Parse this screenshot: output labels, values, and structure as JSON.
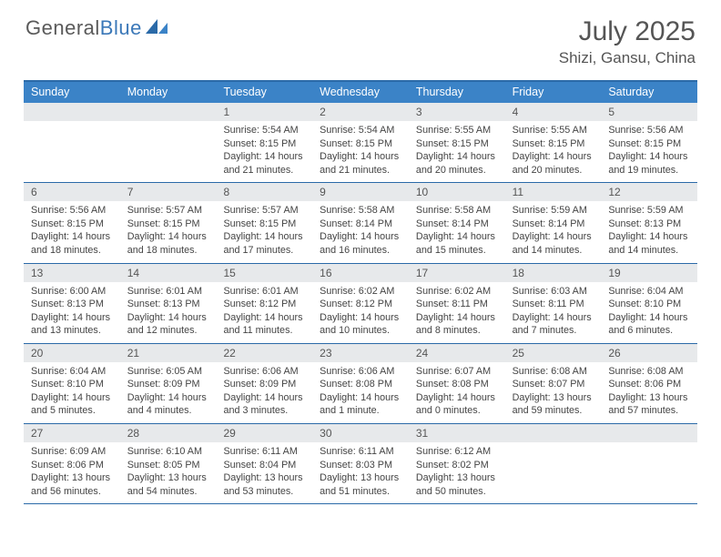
{
  "logo": {
    "text1": "General",
    "text2": "Blue"
  },
  "title": "July 2025",
  "location": "Shizi, Gansu, China",
  "colors": {
    "header_bg": "#3b83c7",
    "border": "#2b6aa8",
    "daynum_bg": "#e7e9eb",
    "text": "#444444",
    "title": "#555555"
  },
  "dow": [
    "Sunday",
    "Monday",
    "Tuesday",
    "Wednesday",
    "Thursday",
    "Friday",
    "Saturday"
  ],
  "weeks": [
    [
      {
        "n": "",
        "sr": "",
        "ss": "",
        "dl": ""
      },
      {
        "n": "",
        "sr": "",
        "ss": "",
        "dl": ""
      },
      {
        "n": "1",
        "sr": "Sunrise: 5:54 AM",
        "ss": "Sunset: 8:15 PM",
        "dl": "Daylight: 14 hours and 21 minutes."
      },
      {
        "n": "2",
        "sr": "Sunrise: 5:54 AM",
        "ss": "Sunset: 8:15 PM",
        "dl": "Daylight: 14 hours and 21 minutes."
      },
      {
        "n": "3",
        "sr": "Sunrise: 5:55 AM",
        "ss": "Sunset: 8:15 PM",
        "dl": "Daylight: 14 hours and 20 minutes."
      },
      {
        "n": "4",
        "sr": "Sunrise: 5:55 AM",
        "ss": "Sunset: 8:15 PM",
        "dl": "Daylight: 14 hours and 20 minutes."
      },
      {
        "n": "5",
        "sr": "Sunrise: 5:56 AM",
        "ss": "Sunset: 8:15 PM",
        "dl": "Daylight: 14 hours and 19 minutes."
      }
    ],
    [
      {
        "n": "6",
        "sr": "Sunrise: 5:56 AM",
        "ss": "Sunset: 8:15 PM",
        "dl": "Daylight: 14 hours and 18 minutes."
      },
      {
        "n": "7",
        "sr": "Sunrise: 5:57 AM",
        "ss": "Sunset: 8:15 PM",
        "dl": "Daylight: 14 hours and 18 minutes."
      },
      {
        "n": "8",
        "sr": "Sunrise: 5:57 AM",
        "ss": "Sunset: 8:15 PM",
        "dl": "Daylight: 14 hours and 17 minutes."
      },
      {
        "n": "9",
        "sr": "Sunrise: 5:58 AM",
        "ss": "Sunset: 8:14 PM",
        "dl": "Daylight: 14 hours and 16 minutes."
      },
      {
        "n": "10",
        "sr": "Sunrise: 5:58 AM",
        "ss": "Sunset: 8:14 PM",
        "dl": "Daylight: 14 hours and 15 minutes."
      },
      {
        "n": "11",
        "sr": "Sunrise: 5:59 AM",
        "ss": "Sunset: 8:14 PM",
        "dl": "Daylight: 14 hours and 14 minutes."
      },
      {
        "n": "12",
        "sr": "Sunrise: 5:59 AM",
        "ss": "Sunset: 8:13 PM",
        "dl": "Daylight: 14 hours and 14 minutes."
      }
    ],
    [
      {
        "n": "13",
        "sr": "Sunrise: 6:00 AM",
        "ss": "Sunset: 8:13 PM",
        "dl": "Daylight: 14 hours and 13 minutes."
      },
      {
        "n": "14",
        "sr": "Sunrise: 6:01 AM",
        "ss": "Sunset: 8:13 PM",
        "dl": "Daylight: 14 hours and 12 minutes."
      },
      {
        "n": "15",
        "sr": "Sunrise: 6:01 AM",
        "ss": "Sunset: 8:12 PM",
        "dl": "Daylight: 14 hours and 11 minutes."
      },
      {
        "n": "16",
        "sr": "Sunrise: 6:02 AM",
        "ss": "Sunset: 8:12 PM",
        "dl": "Daylight: 14 hours and 10 minutes."
      },
      {
        "n": "17",
        "sr": "Sunrise: 6:02 AM",
        "ss": "Sunset: 8:11 PM",
        "dl": "Daylight: 14 hours and 8 minutes."
      },
      {
        "n": "18",
        "sr": "Sunrise: 6:03 AM",
        "ss": "Sunset: 8:11 PM",
        "dl": "Daylight: 14 hours and 7 minutes."
      },
      {
        "n": "19",
        "sr": "Sunrise: 6:04 AM",
        "ss": "Sunset: 8:10 PM",
        "dl": "Daylight: 14 hours and 6 minutes."
      }
    ],
    [
      {
        "n": "20",
        "sr": "Sunrise: 6:04 AM",
        "ss": "Sunset: 8:10 PM",
        "dl": "Daylight: 14 hours and 5 minutes."
      },
      {
        "n": "21",
        "sr": "Sunrise: 6:05 AM",
        "ss": "Sunset: 8:09 PM",
        "dl": "Daylight: 14 hours and 4 minutes."
      },
      {
        "n": "22",
        "sr": "Sunrise: 6:06 AM",
        "ss": "Sunset: 8:09 PM",
        "dl": "Daylight: 14 hours and 3 minutes."
      },
      {
        "n": "23",
        "sr": "Sunrise: 6:06 AM",
        "ss": "Sunset: 8:08 PM",
        "dl": "Daylight: 14 hours and 1 minute."
      },
      {
        "n": "24",
        "sr": "Sunrise: 6:07 AM",
        "ss": "Sunset: 8:08 PM",
        "dl": "Daylight: 14 hours and 0 minutes."
      },
      {
        "n": "25",
        "sr": "Sunrise: 6:08 AM",
        "ss": "Sunset: 8:07 PM",
        "dl": "Daylight: 13 hours and 59 minutes."
      },
      {
        "n": "26",
        "sr": "Sunrise: 6:08 AM",
        "ss": "Sunset: 8:06 PM",
        "dl": "Daylight: 13 hours and 57 minutes."
      }
    ],
    [
      {
        "n": "27",
        "sr": "Sunrise: 6:09 AM",
        "ss": "Sunset: 8:06 PM",
        "dl": "Daylight: 13 hours and 56 minutes."
      },
      {
        "n": "28",
        "sr": "Sunrise: 6:10 AM",
        "ss": "Sunset: 8:05 PM",
        "dl": "Daylight: 13 hours and 54 minutes."
      },
      {
        "n": "29",
        "sr": "Sunrise: 6:11 AM",
        "ss": "Sunset: 8:04 PM",
        "dl": "Daylight: 13 hours and 53 minutes."
      },
      {
        "n": "30",
        "sr": "Sunrise: 6:11 AM",
        "ss": "Sunset: 8:03 PM",
        "dl": "Daylight: 13 hours and 51 minutes."
      },
      {
        "n": "31",
        "sr": "Sunrise: 6:12 AM",
        "ss": "Sunset: 8:02 PM",
        "dl": "Daylight: 13 hours and 50 minutes."
      },
      {
        "n": "",
        "sr": "",
        "ss": "",
        "dl": ""
      },
      {
        "n": "",
        "sr": "",
        "ss": "",
        "dl": ""
      }
    ]
  ]
}
